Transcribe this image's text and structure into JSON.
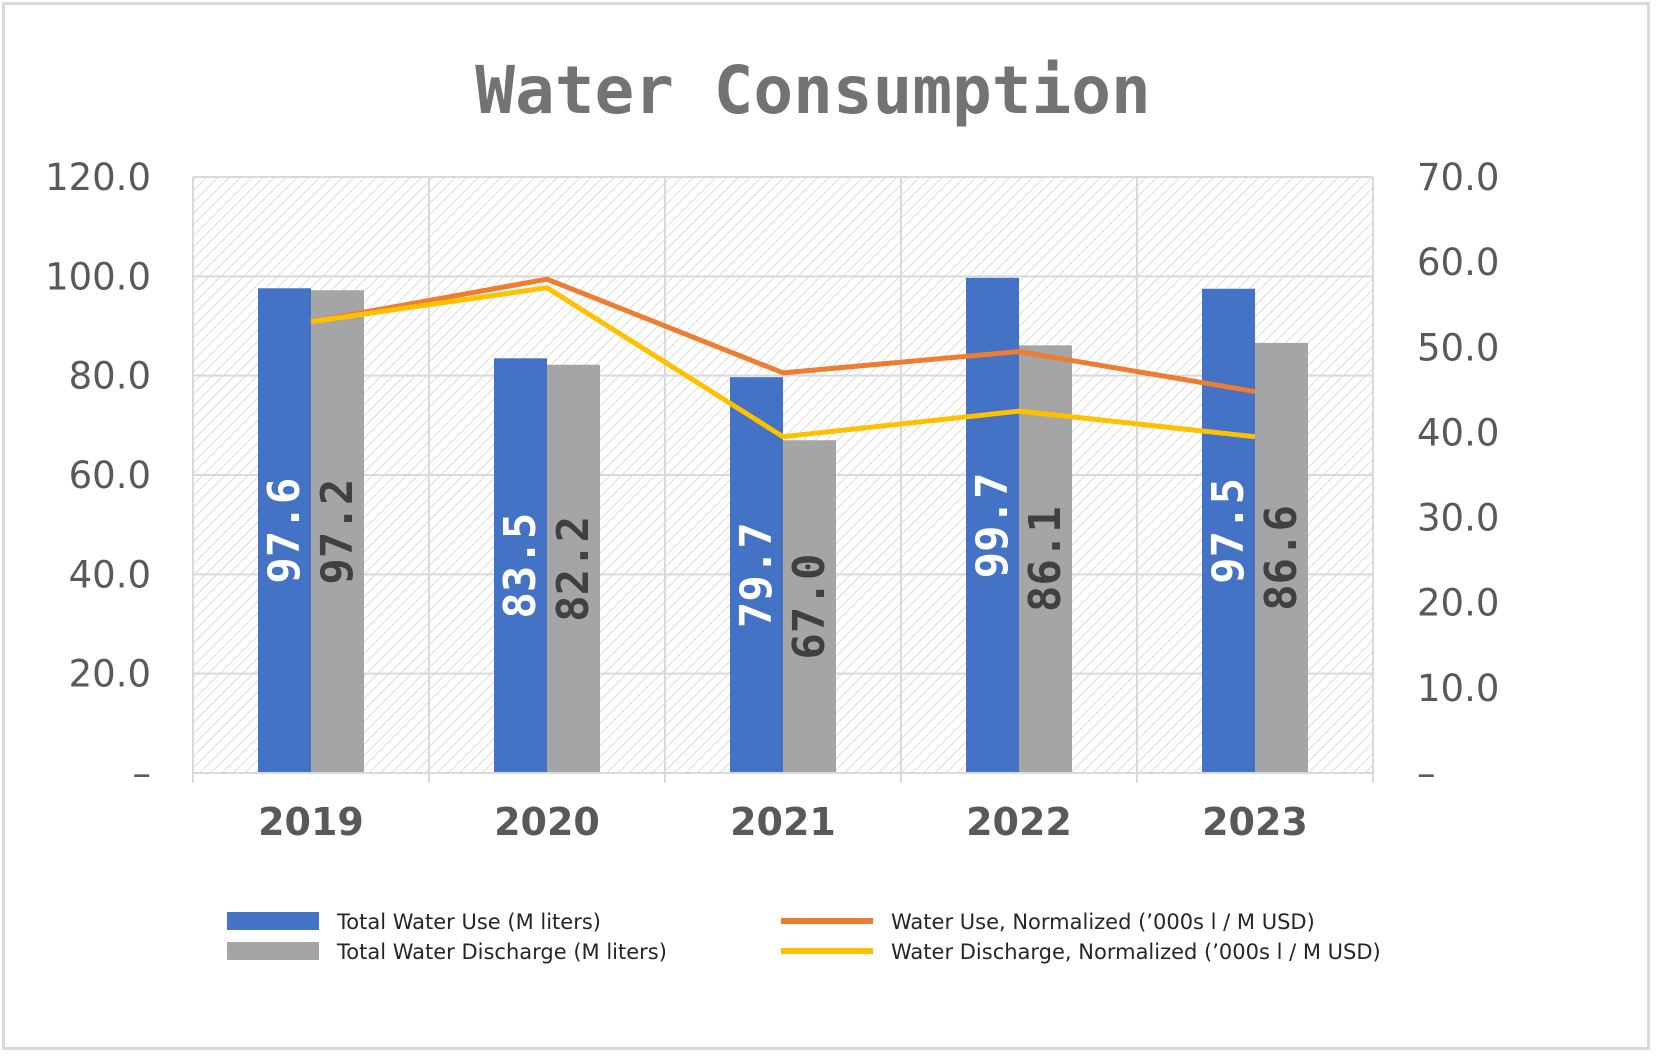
{
  "chart_data": {
    "type": "bar",
    "title": "Water Consumption",
    "categories": [
      "2019",
      "2020",
      "2021",
      "2022",
      "2023"
    ],
    "y_left": {
      "ylim": [
        0,
        120
      ],
      "ticks": [
        "–",
        "20.0",
        "40.0",
        "60.0",
        "80.0",
        "100.0",
        "120.0"
      ]
    },
    "y_right": {
      "ylim": [
        0,
        70
      ],
      "ticks": [
        "–",
        "10.0",
        "20.0",
        "30.0",
        "40.0",
        "50.0",
        "60.0",
        "70.0"
      ]
    },
    "grid": true,
    "legend_position": "bottom",
    "bar_series": [
      {
        "name": "Total Water Use (M liters)",
        "color": "#4472c4",
        "label_color": "#ffffff",
        "values": [
          97.6,
          83.5,
          79.7,
          99.7,
          97.5
        ],
        "labels": [
          "97.6",
          "83.5",
          "79.7",
          "99.7",
          "97.5"
        ]
      },
      {
        "name": "Total Water Discharge (M liters)",
        "color": "#a5a5a5",
        "label_color": "#404040",
        "values": [
          97.2,
          82.2,
          67.0,
          86.1,
          86.6
        ],
        "labels": [
          "97.2",
          "82.2",
          "67.0",
          "86.1",
          "86.6"
        ]
      }
    ],
    "line_series": [
      {
        "name": "Water Use, Normalized (’000s l / M USD)",
        "color": "#ed7d31",
        "axis": "right",
        "values": [
          53.0,
          58.0,
          47.0,
          49.5,
          44.8
        ]
      },
      {
        "name": "Water Discharge, Normalized (’000s l / M USD)",
        "color": "#ffc000",
        "axis": "right",
        "values": [
          53.0,
          57.0,
          39.5,
          42.5,
          39.5
        ]
      }
    ]
  }
}
